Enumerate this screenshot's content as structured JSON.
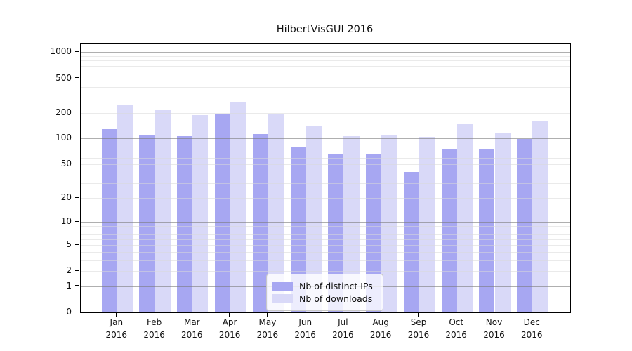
{
  "chart_data": {
    "type": "bar",
    "title": "HilbertVisGUI 2016",
    "yscale": "log1p",
    "ylim": [
      0,
      1260
    ],
    "grid": true,
    "categories": [
      "Jan",
      "Feb",
      "Mar",
      "Apr",
      "May",
      "Jun",
      "Jul",
      "Aug",
      "Sep",
      "Oct",
      "Nov",
      "Dec"
    ],
    "category_year": "2016",
    "ytick_values": [
      0,
      1,
      2,
      5,
      10,
      20,
      50,
      100,
      200,
      500,
      1000
    ],
    "ytick_labels": [
      "0",
      "1",
      "2",
      "5",
      "10",
      "20",
      "50",
      "100",
      "200",
      "500",
      "1000"
    ],
    "series": [
      {
        "name": "Nb of distinct IPs",
        "color": "#a7a7f2",
        "values": [
          130,
          110,
          106,
          193,
          113,
          79,
          66,
          65,
          41,
          76,
          76,
          99
        ]
      },
      {
        "name": "Nb of downloads",
        "color": "#d9d9f8",
        "values": [
          245,
          212,
          186,
          266,
          190,
          138,
          107,
          110,
          105,
          147,
          116,
          161
        ]
      }
    ],
    "legend_position": "lower center"
  },
  "colors": {
    "background": "#ffffff",
    "axis": "#000000",
    "grid_major": "#7a7a7a",
    "grid_minor": "#d9d9d9",
    "legend_face": "#ffffff",
    "legend_edge": "#c8c8c8"
  }
}
